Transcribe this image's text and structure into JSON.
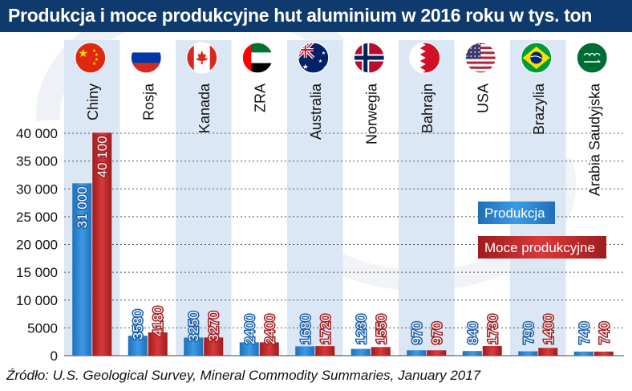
{
  "title": "Produkcja i moce produkcyjne hut aluminium w 2016 roku w tys. ton",
  "source": "Źródło: U.S. Geological Survey, Mineral Commodity Summaries, January 2017",
  "colors": {
    "title_bg": "#0f3a6e",
    "production": "#2e86d6",
    "capacity": "#c0282a",
    "column_band": "#dce7f5"
  },
  "chart_data": {
    "type": "bar",
    "categories": [
      "Chiny",
      "Rosja",
      "Kanada",
      "ZRA",
      "Australia",
      "Norwegia",
      "Bahrajn",
      "USA",
      "Brazylia",
      "Arabia Saudyjska"
    ],
    "flags": [
      "china-flag-icon",
      "russia-flag-icon",
      "canada-flag-icon",
      "uae-flag-icon",
      "australia-flag-icon",
      "norway-flag-icon",
      "bahrain-flag-icon",
      "usa-flag-icon",
      "brazil-flag-icon",
      "saudi-arabia-flag-icon"
    ],
    "series": [
      {
        "name": "Produkcja",
        "values": [
          31000,
          3580,
          3250,
          2400,
          1680,
          1230,
          970,
          840,
          790,
          740
        ],
        "labels": [
          "31 000",
          "3580",
          "3250",
          "2400",
          "1680",
          "1230",
          "970",
          "840",
          "790",
          "740"
        ]
      },
      {
        "name": "Moce produkcyjne",
        "values": [
          40100,
          4180,
          3270,
          2400,
          1720,
          1550,
          970,
          1730,
          1400,
          740
        ],
        "labels": [
          "40 100",
          "4180",
          "3270",
          "2400",
          "1720",
          "1550",
          "970",
          "1730",
          "1400",
          "740"
        ]
      }
    ],
    "yticks": [
      0,
      5000,
      10000,
      15000,
      20000,
      25000,
      30000,
      35000,
      40000
    ],
    "ytick_labels": [
      "0",
      "5000",
      "10 000",
      "15 000",
      "20 000",
      "25 000",
      "30 000",
      "35 000",
      "40 000"
    ],
    "ylim": [
      0,
      40000
    ],
    "grid": true,
    "legend_position": "right"
  }
}
